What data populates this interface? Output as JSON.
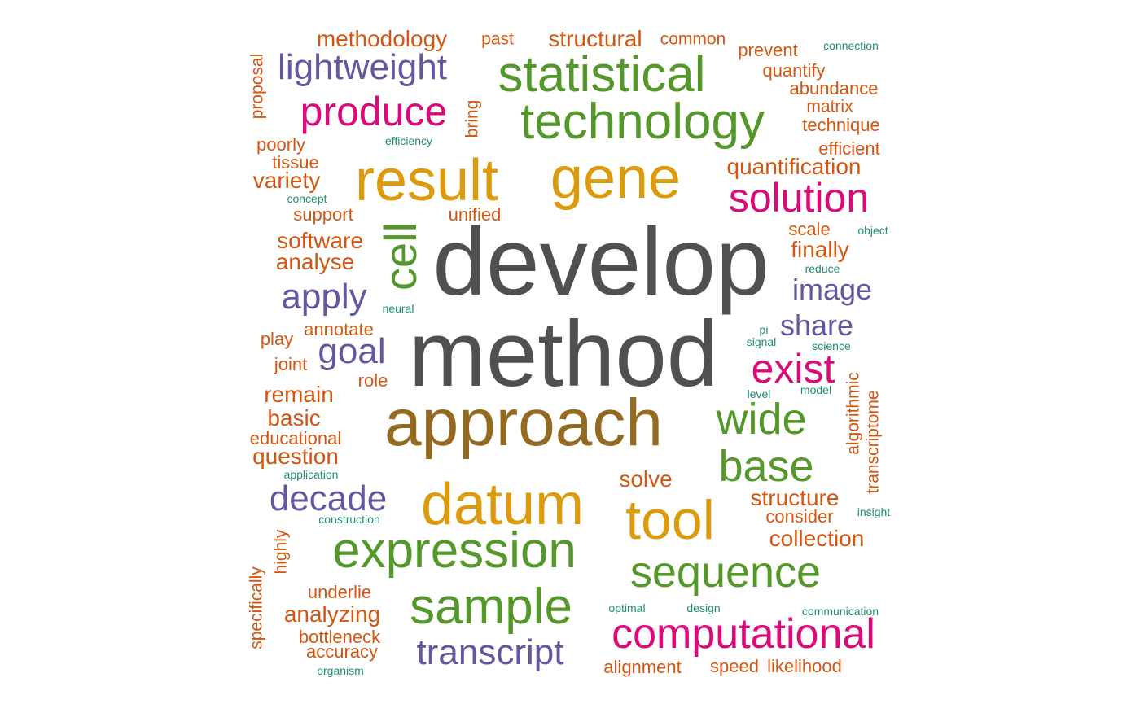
{
  "colors": {
    "gray": "#505050",
    "brown": "#946a20",
    "gold": "#dc9a0c",
    "green": "#54982a",
    "magenta": "#dc0a78",
    "purple": "#6058a0",
    "orange": "#d45610",
    "teal": "#1e9070"
  },
  "words": [
    {
      "text": "develop",
      "freq": 100,
      "color": "gray"
    },
    {
      "text": "method",
      "freq": 97,
      "color": "gray"
    },
    {
      "text": "approach",
      "freq": 70,
      "color": "brown"
    },
    {
      "text": "gene",
      "freq": 58,
      "color": "gold"
    },
    {
      "text": "result",
      "freq": 58,
      "color": "gold"
    },
    {
      "text": "datum",
      "freq": 57,
      "color": "gold"
    },
    {
      "text": "tool",
      "freq": 55,
      "color": "gold"
    },
    {
      "text": "statistical",
      "freq": 48,
      "color": "green"
    },
    {
      "text": "technology",
      "freq": 48,
      "color": "green"
    },
    {
      "text": "expression",
      "freq": 47,
      "color": "green"
    },
    {
      "text": "sample",
      "freq": 47,
      "color": "green"
    },
    {
      "text": "cell",
      "freq": 45,
      "color": "green"
    },
    {
      "text": "wide",
      "freq": 42,
      "color": "green"
    },
    {
      "text": "base",
      "freq": 42,
      "color": "green"
    },
    {
      "text": "sequence",
      "freq": 42,
      "color": "green"
    },
    {
      "text": "computational",
      "freq": 40,
      "color": "magenta"
    },
    {
      "text": "produce",
      "freq": 38,
      "color": "magenta"
    },
    {
      "text": "solution",
      "freq": 38,
      "color": "magenta"
    },
    {
      "text": "exist",
      "freq": 38,
      "color": "magenta"
    },
    {
      "text": "lightweight",
      "freq": 34,
      "color": "purple"
    },
    {
      "text": "apply",
      "freq": 34,
      "color": "purple"
    },
    {
      "text": "goal",
      "freq": 34,
      "color": "purple"
    },
    {
      "text": "decade",
      "freq": 34,
      "color": "purple"
    },
    {
      "text": "transcript",
      "freq": 34,
      "color": "purple"
    },
    {
      "text": "image",
      "freq": 28,
      "color": "purple"
    },
    {
      "text": "share",
      "freq": 28,
      "color": "purple"
    },
    {
      "text": "methodology",
      "freq": 22,
      "color": "orange"
    },
    {
      "text": "past",
      "freq": 16,
      "color": "orange"
    },
    {
      "text": "structural",
      "freq": 22,
      "color": "orange"
    },
    {
      "text": "common",
      "freq": 16,
      "color": "orange"
    },
    {
      "text": "prevent",
      "freq": 18,
      "color": "orange"
    },
    {
      "text": "quantify",
      "freq": 18,
      "color": "orange"
    },
    {
      "text": "abundance",
      "freq": 18,
      "color": "orange"
    },
    {
      "text": "matrix",
      "freq": 16,
      "color": "orange"
    },
    {
      "text": "technique",
      "freq": 18,
      "color": "orange"
    },
    {
      "text": "efficient",
      "freq": 18,
      "color": "orange"
    },
    {
      "text": "quantification",
      "freq": 22,
      "color": "orange"
    },
    {
      "text": "proposal",
      "freq": 16,
      "color": "orange"
    },
    {
      "text": "bring",
      "freq": 16,
      "color": "orange"
    },
    {
      "text": "poorly",
      "freq": 18,
      "color": "orange"
    },
    {
      "text": "tissue",
      "freq": 18,
      "color": "orange"
    },
    {
      "text": "variety",
      "freq": 22,
      "color": "orange"
    },
    {
      "text": "support",
      "freq": 18,
      "color": "orange"
    },
    {
      "text": "unified",
      "freq": 18,
      "color": "orange"
    },
    {
      "text": "software",
      "freq": 22,
      "color": "orange"
    },
    {
      "text": "analyse",
      "freq": 22,
      "color": "orange"
    },
    {
      "text": "scale",
      "freq": 18,
      "color": "orange"
    },
    {
      "text": "finally",
      "freq": 22,
      "color": "orange"
    },
    {
      "text": "annotate",
      "freq": 18,
      "color": "orange"
    },
    {
      "text": "play",
      "freq": 18,
      "color": "orange"
    },
    {
      "text": "joint",
      "freq": 18,
      "color": "orange"
    },
    {
      "text": "role",
      "freq": 18,
      "color": "orange"
    },
    {
      "text": "remain",
      "freq": 22,
      "color": "orange"
    },
    {
      "text": "basic",
      "freq": 22,
      "color": "orange"
    },
    {
      "text": "educational",
      "freq": 18,
      "color": "orange"
    },
    {
      "text": "question",
      "freq": 22,
      "color": "orange"
    },
    {
      "text": "solve",
      "freq": 22,
      "color": "orange"
    },
    {
      "text": "structure",
      "freq": 22,
      "color": "orange"
    },
    {
      "text": "consider",
      "freq": 18,
      "color": "orange"
    },
    {
      "text": "collection",
      "freq": 22,
      "color": "orange"
    },
    {
      "text": "algorithmic",
      "freq": 18,
      "color": "orange"
    },
    {
      "text": "transcriptome",
      "freq": 18,
      "color": "orange"
    },
    {
      "text": "highly",
      "freq": 18,
      "color": "orange"
    },
    {
      "text": "specifically",
      "freq": 18,
      "color": "orange"
    },
    {
      "text": "underlie",
      "freq": 18,
      "color": "orange"
    },
    {
      "text": "analyzing",
      "freq": 22,
      "color": "orange"
    },
    {
      "text": "bottleneck",
      "freq": 18,
      "color": "orange"
    },
    {
      "text": "accuracy",
      "freq": 18,
      "color": "orange"
    },
    {
      "text": "alignment",
      "freq": 18,
      "color": "orange"
    },
    {
      "text": "speed",
      "freq": 18,
      "color": "orange"
    },
    {
      "text": "likelihood",
      "freq": 18,
      "color": "orange"
    },
    {
      "text": "connection",
      "freq": 10,
      "color": "teal"
    },
    {
      "text": "efficiency",
      "freq": 10,
      "color": "teal"
    },
    {
      "text": "concept",
      "freq": 10,
      "color": "teal"
    },
    {
      "text": "object",
      "freq": 10,
      "color": "teal"
    },
    {
      "text": "reduce",
      "freq": 10,
      "color": "teal"
    },
    {
      "text": "neural",
      "freq": 10,
      "color": "teal"
    },
    {
      "text": "pi",
      "freq": 10,
      "color": "teal"
    },
    {
      "text": "signal",
      "freq": 10,
      "color": "teal"
    },
    {
      "text": "science",
      "freq": 10,
      "color": "teal"
    },
    {
      "text": "level",
      "freq": 10,
      "color": "teal"
    },
    {
      "text": "model",
      "freq": 10,
      "color": "teal"
    },
    {
      "text": "application",
      "freq": 10,
      "color": "teal"
    },
    {
      "text": "construction",
      "freq": 10,
      "color": "teal"
    },
    {
      "text": "insight",
      "freq": 10,
      "color": "teal"
    },
    {
      "text": "optimal",
      "freq": 10,
      "color": "teal"
    },
    {
      "text": "design",
      "freq": 10,
      "color": "teal"
    },
    {
      "text": "communication",
      "freq": 10,
      "color": "teal"
    },
    {
      "text": "organism",
      "freq": 10,
      "color": "teal"
    }
  ]
}
